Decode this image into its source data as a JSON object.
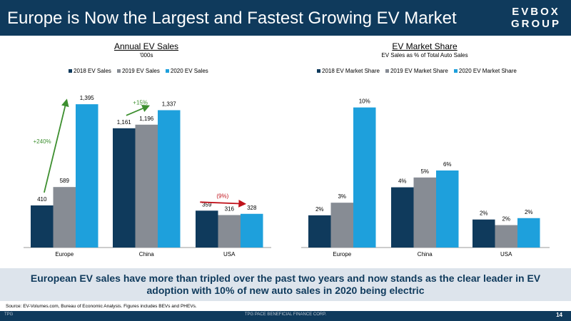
{
  "header": {
    "title": "Europe is Now the Largest and Fastest Growing EV Market",
    "logo_line1": "EVBOX",
    "logo_line2": "GROUP"
  },
  "colors": {
    "navy": "#0f3a5c",
    "series_2018": "#0f3a5c",
    "series_2019": "#878c94",
    "series_2020": "#1ea0dc",
    "green": "#3d8f2f",
    "red": "#c0121b",
    "banner_bg": "#dde4ec"
  },
  "chart_data": [
    {
      "type": "bar",
      "title": "Annual EV Sales",
      "subtitle": "'000s",
      "categories": [
        "Europe",
        "China",
        "USA"
      ],
      "series": [
        {
          "name": "2018 EV Sales",
          "values": [
            410,
            1161,
            359
          ],
          "labels": [
            "410",
            "1,161",
            "359"
          ]
        },
        {
          "name": "2019 EV Sales",
          "values": [
            589,
            1196,
            316
          ],
          "labels": [
            "589",
            "1,196",
            "316"
          ]
        },
        {
          "name": "2020 EV Sales",
          "values": [
            1395,
            1337,
            328
          ],
          "labels": [
            "1,395",
            "1,337",
            "328"
          ]
        }
      ],
      "ylim": [
        0,
        1500
      ],
      "grid": false,
      "legend": "top",
      "annotations": [
        {
          "text": "+240%",
          "category": "Europe",
          "color": "green"
        },
        {
          "text": "+15%",
          "category": "China",
          "color": "green"
        },
        {
          "text": "(9%)",
          "category": "USA",
          "color": "red"
        }
      ]
    },
    {
      "type": "bar",
      "title": "EV Market Share",
      "subtitle": "EV Sales as % of Total Auto Sales",
      "categories": [
        "Europe",
        "China",
        "USA"
      ],
      "series": [
        {
          "name": "2018 EV Market Share",
          "values": [
            2.3,
            4.3,
            2.0
          ],
          "labels": [
            "2%",
            "4%",
            "2%"
          ]
        },
        {
          "name": "2019 EV Market Share",
          "values": [
            3.2,
            5.0,
            1.6
          ],
          "labels": [
            "3%",
            "5%",
            "2%"
          ]
        },
        {
          "name": "2020 EV Market Share",
          "values": [
            10.0,
            5.5,
            2.1
          ],
          "labels": [
            "10%",
            "6%",
            "2%"
          ]
        }
      ],
      "ylim": [
        0,
        11
      ],
      "grid": false,
      "legend": "top"
    }
  ],
  "banner": {
    "text": "European EV sales have more than tripled over the past two years and now stands as the clear leader in EV adoption with 10% of new auto sales in 2020 being electric"
  },
  "source": "Source: EV-Volumes.com, Bureau of Economic Analysis. Figures includes BEVs and PHEVs.",
  "footer": {
    "logo": "TPG",
    "company": "TPG PACE BENEFICIAL FINANCE CORP.",
    "page": "14"
  }
}
